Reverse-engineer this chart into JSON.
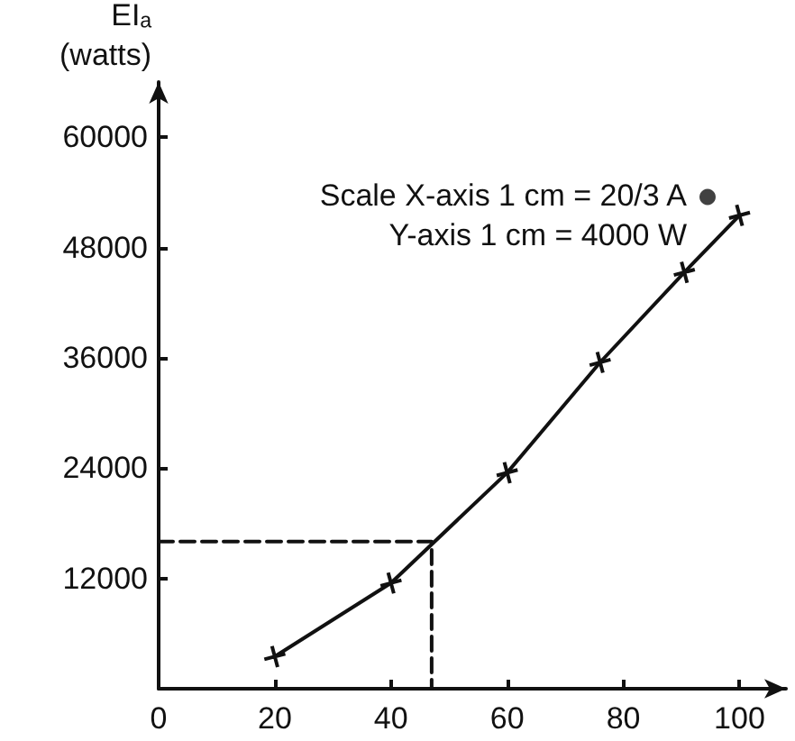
{
  "chart_data": {
    "type": "line",
    "ylabel": "EIₐ\n(watts)",
    "xlim": [
      0,
      108
    ],
    "ylim": [
      0,
      66000
    ],
    "xticks": [
      0,
      20,
      40,
      60,
      80,
      100
    ],
    "yticks": [
      12000,
      24000,
      36000,
      48000,
      60000
    ],
    "grid": false,
    "annotations": [
      "Scale X-axis 1 cm = 20/3 A",
      "Y-axis 1 cm = 4000 W"
    ],
    "series": [
      {
        "color": "#111111",
        "marker": "cross",
        "line_style": "solid",
        "x": [
          20,
          40,
          60,
          76,
          90.5,
          100
        ],
        "values": [
          3500,
          11500,
          23500,
          35500,
          45300,
          51500
        ]
      },
      {
        "type": "scatter",
        "color": "#111111",
        "marker": "circle",
        "x": [
          94.5
        ],
        "values": [
          53500
        ]
      },
      {
        "type": "line",
        "color": "#111111",
        "marker": "none",
        "line_style": "dashed",
        "x": [
          0,
          47,
          47
        ],
        "values": [
          16000,
          16000,
          0
        ]
      }
    ]
  }
}
